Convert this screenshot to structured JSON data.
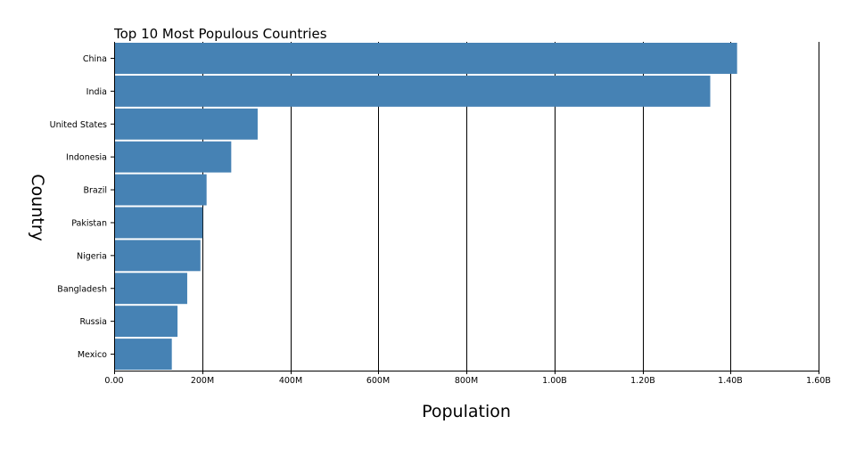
{
  "chart_data": {
    "type": "bar",
    "orientation": "horizontal",
    "title": "Top 10 Most Populous Countries",
    "xlabel": "Population",
    "ylabel": "Country",
    "categories": [
      "China",
      "India",
      "United States",
      "Indonesia",
      "Brazil",
      "Pakistan",
      "Nigeria",
      "Bangladesh",
      "Russia",
      "Mexico"
    ],
    "values": [
      1415000000,
      1354000000,
      326000000,
      266000000,
      210000000,
      201000000,
      196000000,
      166000000,
      144000000,
      131000000
    ],
    "xlim": [
      0,
      1600000000
    ],
    "xticks": [
      0,
      200000000,
      400000000,
      600000000,
      800000000,
      1000000000,
      1200000000,
      1400000000,
      1600000000
    ],
    "xtick_labels": [
      "0.00",
      "200M",
      "400M",
      "600M",
      "800M",
      "1.00B",
      "1.20B",
      "1.40B",
      "1.60B"
    ],
    "grid": true,
    "bar_color": "#4682b4"
  }
}
